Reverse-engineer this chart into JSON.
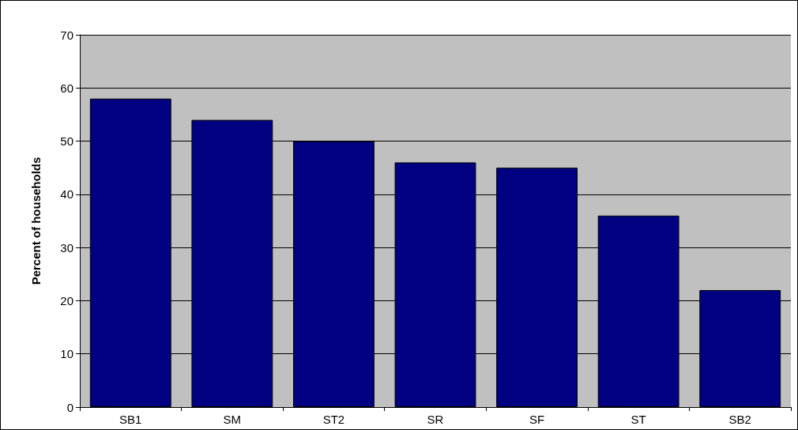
{
  "chart_data": {
    "type": "bar",
    "ylabel": "Percent of households",
    "categories": [
      "SB1",
      "SM",
      "ST2",
      "SR",
      "SF",
      "ST",
      "SB2"
    ],
    "values": [
      58,
      54,
      50,
      46,
      45,
      36,
      22
    ],
    "color": "#000080",
    "ylim": [
      0,
      70
    ],
    "yticks": [
      0,
      10,
      20,
      30,
      40,
      50,
      60,
      70
    ],
    "grid": "y"
  }
}
